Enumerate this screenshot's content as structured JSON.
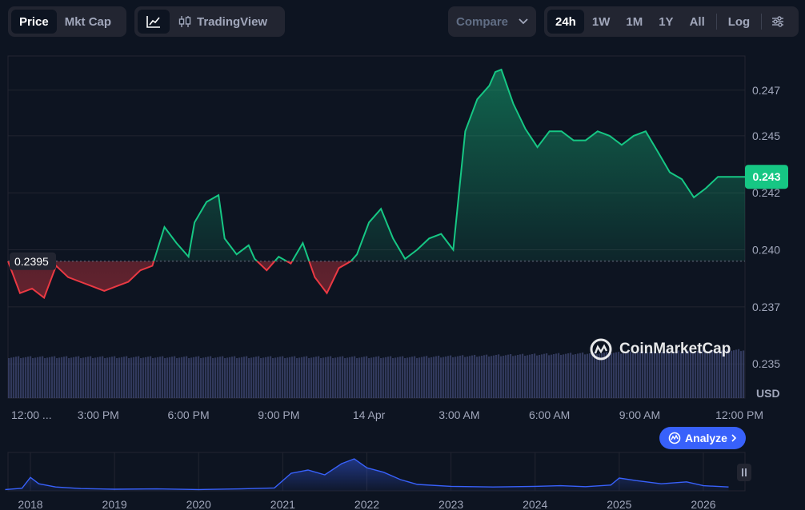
{
  "toolbar": {
    "metric_tabs": [
      {
        "label": "Price",
        "active": true
      },
      {
        "label": "Mkt Cap",
        "active": false
      }
    ],
    "chart_type": {
      "line_icon": "line-chart-icon",
      "candle_icon": "candlestick-icon",
      "tradingview_label": "TradingView"
    },
    "compare_label": "Compare",
    "ranges": [
      {
        "label": "24h",
        "active": true
      },
      {
        "label": "1W",
        "active": false
      },
      {
        "label": "1M",
        "active": false
      },
      {
        "label": "1Y",
        "active": false
      },
      {
        "label": "All",
        "active": false
      }
    ],
    "log_label": "Log",
    "settings_icon": "settings-sliders-icon"
  },
  "colors": {
    "background": "#0d1421",
    "up": "#16c784",
    "down": "#ea3943",
    "volume": "#3d4670",
    "overview_line": "#3861fb",
    "accent": "#3861fb"
  },
  "watermark": "CoinMarketCap",
  "analyze_label": "Analyze",
  "chart_data": {
    "type": "line",
    "currency_label": "USD",
    "baseline_value": 0.2395,
    "baseline_label": "0.2395",
    "current_value": 0.2432,
    "current_label": "0.243",
    "ylim": [
      0.2335,
      0.2485
    ],
    "y_ticks": [
      {
        "value": 0.247,
        "label": "0.247"
      },
      {
        "value": 0.245,
        "label": "0.245"
      },
      {
        "value": 0.2425,
        "label": "0.242"
      },
      {
        "value": 0.24,
        "label": "0.240"
      },
      {
        "value": 0.2375,
        "label": "0.237"
      },
      {
        "value": 0.235,
        "label": "0.235"
      }
    ],
    "x_range_hours": [
      12,
      36.5
    ],
    "x_ticks": [
      {
        "t": 12.3,
        "label": "12:00 ..."
      },
      {
        "t": 15,
        "label": "3:00 PM"
      },
      {
        "t": 18,
        "label": "6:00 PM"
      },
      {
        "t": 21,
        "label": "9:00 PM"
      },
      {
        "t": 24,
        "label": "14 Apr"
      },
      {
        "t": 27,
        "label": "3:00 AM"
      },
      {
        "t": 30,
        "label": "6:00 AM"
      },
      {
        "t": 33,
        "label": "9:00 AM"
      },
      {
        "t": 36,
        "label": "12:00 PM"
      }
    ],
    "series": [
      {
        "x": [
          12.0,
          12.4,
          12.8,
          13.2,
          13.6,
          14.0,
          14.4,
          14.8,
          15.2,
          15.6,
          16.0,
          16.4,
          16.8,
          17.2,
          17.6,
          18.0,
          18.2,
          18.6,
          19.0,
          19.2,
          19.6,
          20.0,
          20.2,
          20.6,
          21.0,
          21.4,
          21.8,
          22.2,
          22.6,
          23.0,
          23.4,
          23.6,
          24.0,
          24.4,
          24.8,
          25.2,
          25.6,
          26.0,
          26.4,
          26.8,
          27.2,
          27.6,
          28.0,
          28.2,
          28.4,
          28.8,
          29.2,
          29.6,
          30.0,
          30.4,
          30.8,
          31.2,
          31.6,
          32.0,
          32.4,
          32.8,
          33.2,
          33.6,
          34.0,
          34.4,
          34.8,
          35.2,
          35.6,
          36.0,
          36.4,
          36.5
        ],
        "y": [
          0.2395,
          0.2381,
          0.2383,
          0.2379,
          0.2393,
          0.2388,
          0.2386,
          0.2384,
          0.2382,
          0.2384,
          0.2386,
          0.2391,
          0.2393,
          0.241,
          0.2403,
          0.2397,
          0.2412,
          0.2421,
          0.2424,
          0.2405,
          0.2398,
          0.2402,
          0.2396,
          0.2391,
          0.2397,
          0.2394,
          0.2403,
          0.2388,
          0.2381,
          0.2392,
          0.2395,
          0.2398,
          0.2412,
          0.2418,
          0.2405,
          0.2396,
          0.24,
          0.2405,
          0.2407,
          0.24,
          0.2452,
          0.2466,
          0.2472,
          0.2478,
          0.2479,
          0.2464,
          0.2453,
          0.2445,
          0.2452,
          0.2452,
          0.2448,
          0.2448,
          0.2452,
          0.245,
          0.2446,
          0.245,
          0.2452,
          0.2443,
          0.2434,
          0.2431,
          0.2423,
          0.2427,
          0.2432,
          0.2432,
          0.2432,
          0.2432
        ]
      }
    ],
    "overview": {
      "x_ticks": [
        "2018",
        "2019",
        "2020",
        "2021",
        "2022",
        "2023",
        "2024",
        "2025",
        "2026"
      ],
      "series": [
        {
          "x": [
            2017.7,
            2017.9,
            2018.0,
            2018.1,
            2018.3,
            2018.6,
            2019.0,
            2019.5,
            2020.0,
            2020.5,
            2020.9,
            2021.1,
            2021.3,
            2021.5,
            2021.7,
            2021.85,
            2022.0,
            2022.2,
            2022.4,
            2022.6,
            2023.0,
            2023.5,
            2024.0,
            2024.3,
            2024.6,
            2024.9,
            2025.0,
            2025.2,
            2025.5,
            2025.8,
            2026.0,
            2026.3
          ],
          "y": [
            0.04,
            0.08,
            0.42,
            0.22,
            0.12,
            0.07,
            0.05,
            0.06,
            0.04,
            0.06,
            0.09,
            0.55,
            0.65,
            0.5,
            0.85,
            1.0,
            0.72,
            0.58,
            0.35,
            0.2,
            0.14,
            0.12,
            0.14,
            0.16,
            0.13,
            0.18,
            0.4,
            0.32,
            0.22,
            0.28,
            0.16,
            0.12
          ]
        }
      ]
    }
  }
}
